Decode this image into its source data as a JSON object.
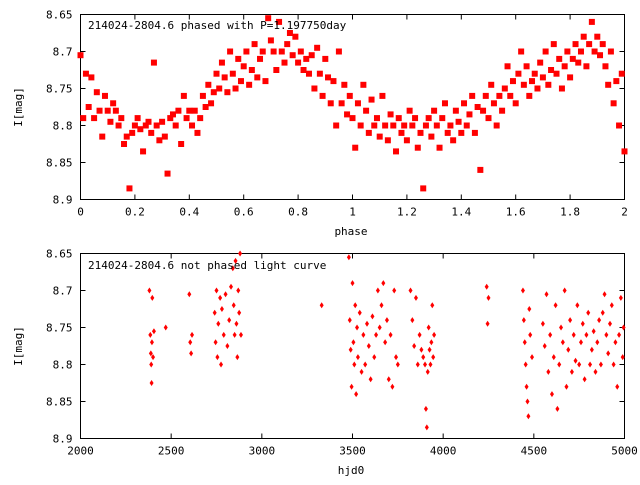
{
  "chart_data": [
    {
      "type": "scatter",
      "title": "214024-2804.6 phased with P=1.197750day",
      "xlabel": "phase",
      "ylabel": "I[mag]",
      "xlim": [
        0,
        2
      ],
      "ylim": [
        8.9,
        8.65
      ],
      "y_inverted": true,
      "marker": "square",
      "color": "#ff0000",
      "x_ticks": [
        "0",
        "0.2",
        "0.4",
        "0.6",
        "0.8",
        "1",
        "1.2",
        "1.4",
        "1.6",
        "1.8",
        "2"
      ],
      "y_ticks": [
        "8.65",
        "8.7",
        "8.75",
        "8.8",
        "8.85",
        "8.9"
      ],
      "points": [
        [
          0.0,
          8.705
        ],
        [
          0.01,
          8.79
        ],
        [
          0.02,
          8.73
        ],
        [
          0.03,
          8.775
        ],
        [
          0.04,
          8.735
        ],
        [
          0.05,
          8.79
        ],
        [
          0.06,
          8.755
        ],
        [
          0.07,
          8.78
        ],
        [
          0.08,
          8.815
        ],
        [
          0.09,
          8.76
        ],
        [
          0.1,
          8.78
        ],
        [
          0.11,
          8.795
        ],
        [
          0.12,
          8.77
        ],
        [
          0.13,
          8.78
        ],
        [
          0.14,
          8.8
        ],
        [
          0.15,
          8.79
        ],
        [
          0.16,
          8.825
        ],
        [
          0.17,
          8.815
        ],
        [
          0.18,
          8.885
        ],
        [
          0.19,
          8.81
        ],
        [
          0.2,
          8.8
        ],
        [
          0.21,
          8.79
        ],
        [
          0.22,
          8.805
        ],
        [
          0.23,
          8.835
        ],
        [
          0.24,
          8.8
        ],
        [
          0.25,
          8.795
        ],
        [
          0.26,
          8.81
        ],
        [
          0.27,
          8.715
        ],
        [
          0.28,
          8.8
        ],
        [
          0.29,
          8.82
        ],
        [
          0.3,
          8.795
        ],
        [
          0.31,
          8.815
        ],
        [
          0.32,
          8.865
        ],
        [
          0.33,
          8.79
        ],
        [
          0.34,
          8.785
        ],
        [
          0.35,
          8.8
        ],
        [
          0.36,
          8.78
        ],
        [
          0.37,
          8.825
        ],
        [
          0.38,
          8.76
        ],
        [
          0.39,
          8.79
        ],
        [
          0.4,
          8.78
        ],
        [
          0.41,
          8.8
        ],
        [
          0.42,
          8.78
        ],
        [
          0.43,
          8.81
        ],
        [
          0.44,
          8.79
        ],
        [
          0.45,
          8.76
        ],
        [
          0.46,
          8.775
        ],
        [
          0.47,
          8.745
        ],
        [
          0.48,
          8.77
        ],
        [
          0.49,
          8.755
        ],
        [
          0.5,
          8.73
        ],
        [
          0.51,
          8.75
        ],
        [
          0.52,
          8.715
        ],
        [
          0.53,
          8.735
        ],
        [
          0.54,
          8.755
        ],
        [
          0.55,
          8.7
        ],
        [
          0.56,
          8.73
        ],
        [
          0.57,
          8.75
        ],
        [
          0.58,
          8.71
        ],
        [
          0.59,
          8.74
        ],
        [
          0.6,
          8.72
        ],
        [
          0.61,
          8.7
        ],
        [
          0.62,
          8.745
        ],
        [
          0.63,
          8.725
        ],
        [
          0.64,
          8.69
        ],
        [
          0.65,
          8.735
        ],
        [
          0.66,
          8.71
        ],
        [
          0.67,
          8.7
        ],
        [
          0.68,
          8.74
        ],
        [
          0.69,
          8.655
        ],
        [
          0.7,
          8.685
        ],
        [
          0.71,
          8.7
        ],
        [
          0.72,
          8.725
        ],
        [
          0.73,
          8.66
        ],
        [
          0.74,
          8.7
        ],
        [
          0.75,
          8.715
        ],
        [
          0.76,
          8.69
        ],
        [
          0.77,
          8.675
        ],
        [
          0.78,
          8.705
        ],
        [
          0.79,
          8.68
        ],
        [
          0.8,
          8.715
        ],
        [
          0.81,
          8.7
        ],
        [
          0.82,
          8.725
        ],
        [
          0.83,
          8.71
        ],
        [
          0.84,
          8.73
        ],
        [
          0.85,
          8.705
        ],
        [
          0.86,
          8.75
        ],
        [
          0.87,
          8.695
        ],
        [
          0.88,
          8.73
        ],
        [
          0.89,
          8.76
        ],
        [
          0.9,
          8.71
        ],
        [
          0.91,
          8.735
        ],
        [
          0.92,
          8.77
        ],
        [
          0.93,
          8.74
        ],
        [
          0.94,
          8.8
        ],
        [
          0.95,
          8.7
        ],
        [
          0.96,
          8.77
        ],
        [
          0.97,
          8.745
        ],
        [
          0.98,
          8.785
        ],
        [
          0.99,
          8.76
        ],
        [
          1.0,
          8.79
        ],
        [
          1.01,
          8.83
        ],
        [
          1.02,
          8.77
        ],
        [
          1.03,
          8.8
        ],
        [
          1.04,
          8.745
        ],
        [
          1.05,
          8.78
        ],
        [
          1.06,
          8.81
        ],
        [
          1.07,
          8.765
        ],
        [
          1.08,
          8.8
        ],
        [
          1.09,
          8.79
        ],
        [
          1.1,
          8.815
        ],
        [
          1.11,
          8.76
        ],
        [
          1.12,
          8.8
        ],
        [
          1.13,
          8.82
        ],
        [
          1.14,
          8.785
        ],
        [
          1.15,
          8.8
        ],
        [
          1.16,
          8.835
        ],
        [
          1.17,
          8.79
        ],
        [
          1.18,
          8.81
        ],
        [
          1.19,
          8.8
        ],
        [
          1.2,
          8.82
        ],
        [
          1.21,
          8.78
        ],
        [
          1.22,
          8.8
        ],
        [
          1.23,
          8.79
        ],
        [
          1.24,
          8.83
        ],
        [
          1.25,
          8.81
        ],
        [
          1.26,
          8.885
        ],
        [
          1.27,
          8.8
        ],
        [
          1.28,
          8.79
        ],
        [
          1.29,
          8.815
        ],
        [
          1.3,
          8.78
        ],
        [
          1.31,
          8.8
        ],
        [
          1.32,
          8.83
        ],
        [
          1.33,
          8.79
        ],
        [
          1.34,
          8.77
        ],
        [
          1.35,
          8.81
        ],
        [
          1.36,
          8.8
        ],
        [
          1.37,
          8.82
        ],
        [
          1.38,
          8.78
        ],
        [
          1.39,
          8.795
        ],
        [
          1.4,
          8.81
        ],
        [
          1.41,
          8.77
        ],
        [
          1.42,
          8.8
        ],
        [
          1.43,
          8.785
        ],
        [
          1.44,
          8.76
        ],
        [
          1.45,
          8.81
        ],
        [
          1.46,
          8.775
        ],
        [
          1.47,
          8.86
        ],
        [
          1.48,
          8.78
        ],
        [
          1.49,
          8.76
        ],
        [
          1.5,
          8.79
        ],
        [
          1.51,
          8.745
        ],
        [
          1.52,
          8.77
        ],
        [
          1.53,
          8.8
        ],
        [
          1.54,
          8.76
        ],
        [
          1.55,
          8.78
        ],
        [
          1.56,
          8.75
        ],
        [
          1.57,
          8.72
        ],
        [
          1.58,
          8.76
        ],
        [
          1.59,
          8.74
        ],
        [
          1.6,
          8.77
        ],
        [
          1.61,
          8.73
        ],
        [
          1.62,
          8.7
        ],
        [
          1.63,
          8.745
        ],
        [
          1.64,
          8.72
        ],
        [
          1.65,
          8.76
        ],
        [
          1.66,
          8.74
        ],
        [
          1.67,
          8.73
        ],
        [
          1.68,
          8.75
        ],
        [
          1.69,
          8.715
        ],
        [
          1.7,
          8.735
        ],
        [
          1.71,
          8.7
        ],
        [
          1.72,
          8.745
        ],
        [
          1.73,
          8.725
        ],
        [
          1.74,
          8.69
        ],
        [
          1.75,
          8.73
        ],
        [
          1.76,
          8.71
        ],
        [
          1.77,
          8.75
        ],
        [
          1.78,
          8.72
        ],
        [
          1.79,
          8.7
        ],
        [
          1.8,
          8.735
        ],
        [
          1.81,
          8.71
        ],
        [
          1.82,
          8.69
        ],
        [
          1.83,
          8.715
        ],
        [
          1.84,
          8.7
        ],
        [
          1.85,
          8.68
        ],
        [
          1.86,
          8.72
        ],
        [
          1.87,
          8.69
        ],
        [
          1.88,
          8.66
        ],
        [
          1.89,
          8.7
        ],
        [
          1.9,
          8.68
        ],
        [
          1.91,
          8.705
        ],
        [
          1.92,
          8.69
        ],
        [
          1.93,
          8.72
        ],
        [
          1.94,
          8.745
        ],
        [
          1.95,
          8.7
        ],
        [
          1.96,
          8.77
        ],
        [
          1.97,
          8.74
        ],
        [
          1.98,
          8.8
        ],
        [
          1.99,
          8.73
        ],
        [
          2.0,
          8.835
        ]
      ]
    },
    {
      "type": "scatter",
      "title": "214024-2804.6 not phased light curve",
      "xlabel": "hjd0",
      "ylabel": "I[mag]",
      "xlim": [
        2000,
        5000
      ],
      "ylim": [
        8.9,
        8.65
      ],
      "y_inverted": true,
      "marker": "diamond",
      "color": "#ff0000",
      "x_ticks": [
        "2000",
        "2500",
        "3000",
        "3500",
        "4000",
        "4500",
        "5000"
      ],
      "y_ticks": [
        "8.65",
        "8.7",
        "8.75",
        "8.8",
        "8.85",
        "8.9"
      ],
      "points": [
        [
          2380,
          8.7
        ],
        [
          2385,
          8.76
        ],
        [
          2388,
          8.785
        ],
        [
          2390,
          8.8
        ],
        [
          2392,
          8.825
        ],
        [
          2394,
          8.77
        ],
        [
          2396,
          8.71
        ],
        [
          2400,
          8.79
        ],
        [
          2405,
          8.755
        ],
        [
          2470,
          8.75
        ],
        [
          2600,
          8.705
        ],
        [
          2605,
          8.77
        ],
        [
          2610,
          8.785
        ],
        [
          2615,
          8.76
        ],
        [
          2740,
          8.73
        ],
        [
          2745,
          8.77
        ],
        [
          2750,
          8.7
        ],
        [
          2755,
          8.79
        ],
        [
          2760,
          8.745
        ],
        [
          2770,
          8.71
        ],
        [
          2775,
          8.8
        ],
        [
          2780,
          8.725
        ],
        [
          2790,
          8.76
        ],
        [
          2800,
          8.705
        ],
        [
          2810,
          8.775
        ],
        [
          2820,
          8.74
        ],
        [
          2830,
          8.695
        ],
        [
          2840,
          8.67
        ],
        [
          2845,
          8.72
        ],
        [
          2850,
          8.76
        ],
        [
          2855,
          8.66
        ],
        [
          2860,
          8.745
        ],
        [
          2865,
          8.79
        ],
        [
          2870,
          8.7
        ],
        [
          2875,
          8.73
        ],
        [
          2880,
          8.65
        ],
        [
          2885,
          8.76
        ],
        [
          3330,
          8.72
        ],
        [
          3480,
          8.655
        ],
        [
          3485,
          8.74
        ],
        [
          3490,
          8.78
        ],
        [
          3495,
          8.83
        ],
        [
          3500,
          8.69
        ],
        [
          3505,
          8.77
        ],
        [
          3510,
          8.8
        ],
        [
          3515,
          8.72
        ],
        [
          3520,
          8.84
        ],
        [
          3525,
          8.75
        ],
        [
          3530,
          8.79
        ],
        [
          3540,
          8.73
        ],
        [
          3550,
          8.81
        ],
        [
          3560,
          8.76
        ],
        [
          3570,
          8.8
        ],
        [
          3580,
          8.745
        ],
        [
          3590,
          8.775
        ],
        [
          3600,
          8.82
        ],
        [
          3610,
          8.735
        ],
        [
          3620,
          8.79
        ],
        [
          3630,
          8.76
        ],
        [
          3640,
          8.7
        ],
        [
          3650,
          8.75
        ],
        [
          3660,
          8.72
        ],
        [
          3670,
          8.69
        ],
        [
          3680,
          8.77
        ],
        [
          3690,
          8.74
        ],
        [
          3700,
          8.82
        ],
        [
          3710,
          8.76
        ],
        [
          3720,
          8.83
        ],
        [
          3730,
          8.7
        ],
        [
          3740,
          8.79
        ],
        [
          3750,
          8.8
        ],
        [
          3820,
          8.7
        ],
        [
          3830,
          8.74
        ],
        [
          3840,
          8.775
        ],
        [
          3850,
          8.71
        ],
        [
          3860,
          8.8
        ],
        [
          3870,
          8.76
        ],
        [
          3880,
          8.78
        ],
        [
          3890,
          8.79
        ],
        [
          3900,
          8.8
        ],
        [
          3905,
          8.86
        ],
        [
          3910,
          8.885
        ],
        [
          3915,
          8.81
        ],
        [
          3920,
          8.75
        ],
        [
          3925,
          8.78
        ],
        [
          3930,
          8.8
        ],
        [
          3935,
          8.77
        ],
        [
          3940,
          8.72
        ],
        [
          3945,
          8.79
        ],
        [
          3950,
          8.76
        ],
        [
          4240,
          8.695
        ],
        [
          4245,
          8.745
        ],
        [
          4250,
          8.71
        ],
        [
          4440,
          8.7
        ],
        [
          4445,
          8.74
        ],
        [
          4450,
          8.77
        ],
        [
          4455,
          8.8
        ],
        [
          4460,
          8.83
        ],
        [
          4465,
          8.85
        ],
        [
          4470,
          8.87
        ],
        [
          4475,
          8.725
        ],
        [
          4480,
          8.76
        ],
        [
          4490,
          8.79
        ],
        [
          4550,
          8.745
        ],
        [
          4560,
          8.775
        ],
        [
          4570,
          8.705
        ],
        [
          4580,
          8.81
        ],
        [
          4590,
          8.76
        ],
        [
          4600,
          8.84
        ],
        [
          4610,
          8.79
        ],
        [
          4620,
          8.72
        ],
        [
          4630,
          8.86
        ],
        [
          4640,
          8.8
        ],
        [
          4650,
          8.75
        ],
        [
          4660,
          8.77
        ],
        [
          4670,
          8.7
        ],
        [
          4680,
          8.83
        ],
        [
          4690,
          8.78
        ],
        [
          4700,
          8.74
        ],
        [
          4710,
          8.81
        ],
        [
          4720,
          8.76
        ],
        [
          4730,
          8.795
        ],
        [
          4740,
          8.72
        ],
        [
          4750,
          8.8
        ],
        [
          4760,
          8.77
        ],
        [
          4770,
          8.745
        ],
        [
          4780,
          8.82
        ],
        [
          4790,
          8.76
        ],
        [
          4800,
          8.73
        ],
        [
          4810,
          8.8
        ],
        [
          4820,
          8.78
        ],
        [
          4830,
          8.755
        ],
        [
          4840,
          8.81
        ],
        [
          4850,
          8.77
        ],
        [
          4860,
          8.74
        ],
        [
          4870,
          8.8
        ],
        [
          4880,
          8.73
        ],
        [
          4890,
          8.705
        ],
        [
          4900,
          8.76
        ],
        [
          4910,
          8.785
        ],
        [
          4920,
          8.745
        ],
        [
          4930,
          8.72
        ],
        [
          4940,
          8.8
        ],
        [
          4950,
          8.77
        ],
        [
          4960,
          8.83
        ],
        [
          4970,
          8.76
        ],
        [
          4980,
          8.71
        ],
        [
          4990,
          8.79
        ],
        [
          4995,
          8.75
        ]
      ]
    }
  ]
}
